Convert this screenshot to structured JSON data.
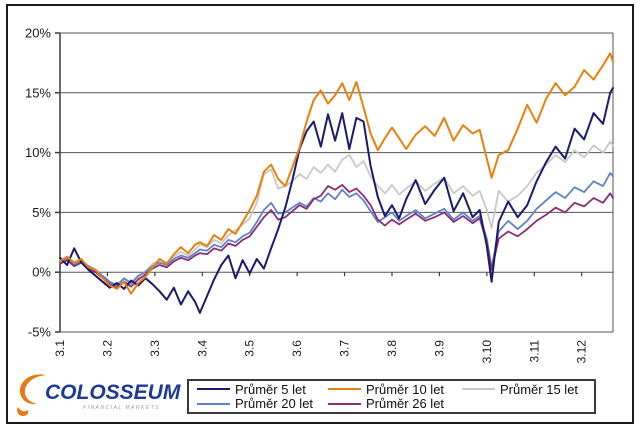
{
  "window": {
    "background": "#ffffff",
    "frame_color": "#1c1c1c"
  },
  "logo": {
    "name": "COLOSSEUM",
    "subtitle": "FINANCIAL MARKETS",
    "text_color": "#1e3a96",
    "swoosh_color": "#e87a14"
  },
  "chart_data": {
    "type": "line",
    "title": "",
    "xlabel": "",
    "ylabel": "",
    "grid": "horizontal",
    "legend_position": "bottom",
    "ylim": [
      -5,
      20
    ],
    "x_range": [
      1,
      12.66
    ],
    "y_ticks": [
      {
        "value": 20,
        "label": "20%"
      },
      {
        "value": 15,
        "label": "15%"
      },
      {
        "value": 10,
        "label": "10%"
      },
      {
        "value": 5,
        "label": "5%"
      },
      {
        "value": 0,
        "label": "0%"
      },
      {
        "value": -5,
        "label": "-5%"
      }
    ],
    "x_ticks": [
      {
        "value": 1,
        "label": "3.1"
      },
      {
        "value": 2,
        "label": "3.2"
      },
      {
        "value": 3,
        "label": "3.3"
      },
      {
        "value": 4,
        "label": "3.4"
      },
      {
        "value": 5,
        "label": "3.5"
      },
      {
        "value": 6,
        "label": "3.6"
      },
      {
        "value": 7,
        "label": "3.7"
      },
      {
        "value": 8,
        "label": "3.8"
      },
      {
        "value": 9,
        "label": "3.9"
      },
      {
        "value": 10,
        "label": "3.10"
      },
      {
        "value": 11,
        "label": "3.11"
      },
      {
        "value": 12,
        "label": "3.12"
      }
    ],
    "x": [
      1.0,
      1.15,
      1.3,
      1.45,
      1.6,
      1.75,
      1.9,
      2.05,
      2.2,
      2.35,
      2.5,
      2.65,
      2.8,
      2.95,
      3.1,
      3.25,
      3.4,
      3.55,
      3.7,
      3.85,
      3.95,
      4.1,
      4.25,
      4.4,
      4.55,
      4.7,
      4.85,
      5.0,
      5.15,
      5.3,
      5.45,
      5.6,
      5.75,
      5.9,
      6.05,
      6.2,
      6.35,
      6.5,
      6.65,
      6.8,
      6.95,
      7.1,
      7.25,
      7.4,
      7.55,
      7.7,
      7.85,
      8.0,
      8.15,
      8.3,
      8.5,
      8.7,
      8.9,
      9.1,
      9.3,
      9.5,
      9.7,
      9.85,
      10.0,
      10.1,
      10.25,
      10.45,
      10.65,
      10.85,
      11.05,
      11.25,
      11.45,
      11.65,
      11.85,
      12.05,
      12.25,
      12.45,
      12.6,
      12.66
    ],
    "series": [
      {
        "name": "Průměr 5 let",
        "color": "#1b1b6e",
        "width": 2,
        "values": [
          1.2,
          0.6,
          2.0,
          0.8,
          0.2,
          -0.3,
          -0.8,
          -1.3,
          -0.9,
          -1.4,
          -0.7,
          -1.1,
          -0.5,
          -1.0,
          -1.6,
          -2.3,
          -1.3,
          -2.7,
          -1.6,
          -2.5,
          -3.4,
          -2.0,
          -0.6,
          0.6,
          1.4,
          -0.5,
          1.0,
          -0.1,
          1.1,
          0.3,
          2.0,
          3.6,
          5.4,
          7.7,
          10.3,
          11.8,
          12.6,
          10.5,
          13.2,
          11.0,
          13.3,
          10.3,
          12.9,
          12.6,
          8.9,
          6.3,
          4.7,
          5.6,
          4.5,
          6.1,
          7.7,
          5.7,
          6.9,
          7.9,
          5.1,
          6.6,
          4.6,
          5.2,
          2.2,
          -0.8,
          4.2,
          5.9,
          4.6,
          5.6,
          7.6,
          9.2,
          10.5,
          9.5,
          12.0,
          11.1,
          13.3,
          12.4,
          15.0,
          15.4
        ]
      },
      {
        "name": "Průměr 10 let",
        "color": "#e8820e",
        "width": 2,
        "values": [
          0.9,
          1.3,
          0.8,
          1.1,
          0.4,
          0.2,
          -0.5,
          -1.1,
          -1.4,
          -0.8,
          -1.8,
          -0.9,
          -0.4,
          0.4,
          1.1,
          0.7,
          1.5,
          2.1,
          1.6,
          2.3,
          2.5,
          2.2,
          3.1,
          2.7,
          3.6,
          3.2,
          4.2,
          5.2,
          6.4,
          8.4,
          9.0,
          7.8,
          7.2,
          8.8,
          10.4,
          12.6,
          14.4,
          15.2,
          14.1,
          14.8,
          15.8,
          14.4,
          15.9,
          13.8,
          11.6,
          10.2,
          11.2,
          12.1,
          11.2,
          10.3,
          11.5,
          12.2,
          11.4,
          12.9,
          11.0,
          12.3,
          11.6,
          11.9,
          9.5,
          7.9,
          9.8,
          10.2,
          12.0,
          14.0,
          12.5,
          14.5,
          15.8,
          14.8,
          15.5,
          16.9,
          16.1,
          17.3,
          18.3,
          17.6
        ]
      },
      {
        "name": "Průměr 15 let",
        "color": "#c9c9c9",
        "width": 1.8,
        "values": [
          1.0,
          1.2,
          0.7,
          1.0,
          0.5,
          0.1,
          -0.4,
          -0.9,
          -1.2,
          -0.7,
          -1.0,
          -0.4,
          0.1,
          0.7,
          1.0,
          0.8,
          1.3,
          1.7,
          1.4,
          1.9,
          2.3,
          2.1,
          2.7,
          2.4,
          3.1,
          3.5,
          4.0,
          4.5,
          5.8,
          8.2,
          8.6,
          7.0,
          7.2,
          7.6,
          8.2,
          7.8,
          8.8,
          8.3,
          9.0,
          8.4,
          9.4,
          9.8,
          8.8,
          9.3,
          8.0,
          7.2,
          6.6,
          7.3,
          6.5,
          7.0,
          7.6,
          6.8,
          7.4,
          7.9,
          6.6,
          7.2,
          6.4,
          6.8,
          5.2,
          3.7,
          6.8,
          5.9,
          6.4,
          7.2,
          8.3,
          9.0,
          9.8,
          9.2,
          10.2,
          9.6,
          10.6,
          10.0,
          10.9,
          10.6
        ]
      },
      {
        "name": "Průměr 20 let",
        "color": "#5f83c8",
        "width": 1.8,
        "values": [
          0.8,
          1.1,
          0.6,
          0.9,
          0.5,
          0.2,
          -0.3,
          -0.8,
          -1.1,
          -0.5,
          -0.9,
          -0.3,
          0.0,
          0.5,
          0.8,
          0.6,
          1.1,
          1.4,
          1.2,
          1.6,
          1.9,
          1.8,
          2.3,
          2.1,
          2.7,
          2.5,
          3.0,
          3.3,
          4.2,
          5.2,
          5.8,
          4.9,
          5.0,
          5.4,
          5.8,
          5.5,
          6.2,
          5.9,
          6.6,
          6.1,
          6.9,
          6.3,
          6.6,
          6.0,
          5.1,
          4.2,
          4.6,
          5.0,
          4.3,
          4.7,
          5.2,
          4.5,
          4.9,
          5.3,
          4.4,
          5.0,
          4.3,
          4.7,
          2.8,
          0.4,
          3.4,
          4.3,
          3.6,
          4.3,
          5.3,
          6.0,
          6.7,
          6.2,
          7.1,
          6.7,
          7.6,
          7.2,
          8.3,
          8.0
        ]
      },
      {
        "name": "Průměr 26 let",
        "color": "#8b2e78",
        "width": 1.8,
        "values": [
          0.7,
          1.0,
          0.5,
          0.8,
          0.3,
          0.0,
          -0.5,
          -1.0,
          -1.3,
          -0.8,
          -1.2,
          -0.6,
          -0.2,
          0.3,
          0.6,
          0.4,
          0.9,
          1.2,
          1.0,
          1.4,
          1.6,
          1.5,
          2.0,
          1.8,
          2.4,
          2.2,
          2.7,
          3.0,
          3.8,
          4.6,
          5.2,
          4.4,
          4.6,
          5.1,
          5.6,
          5.3,
          6.1,
          6.4,
          7.2,
          6.9,
          7.3,
          6.7,
          7.0,
          6.4,
          5.6,
          4.4,
          3.9,
          4.4,
          4.0,
          4.4,
          4.9,
          4.3,
          4.6,
          5.0,
          4.2,
          4.7,
          4.1,
          4.5,
          2.5,
          0.2,
          2.8,
          3.4,
          3.0,
          3.6,
          4.3,
          4.8,
          5.4,
          5.0,
          5.8,
          5.5,
          6.2,
          5.8,
          6.6,
          6.2
        ]
      }
    ],
    "legend_rows": [
      [
        0,
        1,
        2
      ],
      [
        3,
        4
      ]
    ],
    "axis_color": "#3c3c3c",
    "gridline_color": "#565656"
  }
}
